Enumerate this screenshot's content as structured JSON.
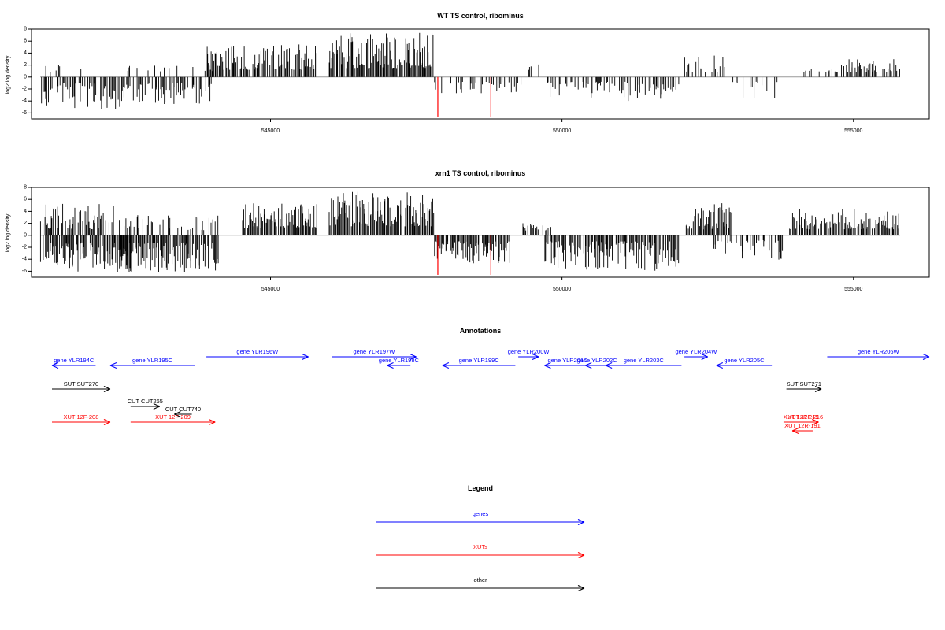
{
  "chart_data": [
    {
      "type": "bar",
      "title": "WT TS control, ribominus",
      "ylabel": "log2 log density",
      "xlabel": "",
      "xlim": [
        540900,
        556300
      ],
      "ylim": [
        -7,
        8
      ],
      "xticks": [
        545000,
        550000,
        555000
      ],
      "xtick_labels": [
        "545000",
        "550000",
        "555000"
      ],
      "yticks": [
        -6,
        -4,
        -2,
        0,
        2,
        4,
        6,
        8
      ],
      "ytick_labels": [
        "-6",
        "-4",
        "-2",
        "0",
        "2",
        "4",
        "6",
        "8"
      ],
      "grid": false,
      "bar_color": "#000000",
      "highlight_color": "#ff0000",
      "segments": [
        {
          "start": 541050,
          "end": 542500,
          "sign": -1,
          "density": 0.55,
          "min": 1.0,
          "max": 5.5
        },
        {
          "start": 541050,
          "end": 541800,
          "sign": 1,
          "density": 0.12,
          "min": 0.8,
          "max": 2.0
        },
        {
          "start": 542400,
          "end": 544000,
          "sign": -1,
          "density": 0.5,
          "min": 1.0,
          "max": 4.6
        },
        {
          "start": 542500,
          "end": 544000,
          "sign": 1,
          "density": 0.12,
          "min": 0.8,
          "max": 2.0
        },
        {
          "start": 543900,
          "end": 545800,
          "sign": 1,
          "density": 0.75,
          "min": 1.2,
          "max": 5.5
        },
        {
          "start": 546000,
          "end": 547800,
          "sign": 1,
          "density": 0.95,
          "min": 1.5,
          "max": 7.5
        },
        {
          "start": 547800,
          "end": 549300,
          "sign": -1,
          "density": 0.35,
          "min": 0.8,
          "max": 3.0
        },
        {
          "start": 549300,
          "end": 549600,
          "sign": 1,
          "density": 0.3,
          "min": 0.8,
          "max": 3.0
        },
        {
          "start": 549700,
          "end": 550700,
          "sign": -1,
          "density": 0.4,
          "min": 0.8,
          "max": 3.5
        },
        {
          "start": 550700,
          "end": 552000,
          "sign": -1,
          "density": 0.5,
          "min": 0.8,
          "max": 4.0
        },
        {
          "start": 552100,
          "end": 552800,
          "sign": 1,
          "density": 0.25,
          "min": 0.8,
          "max": 3.8
        },
        {
          "start": 552900,
          "end": 553700,
          "sign": -1,
          "density": 0.3,
          "min": 0.8,
          "max": 3.5
        },
        {
          "start": 554000,
          "end": 554600,
          "sign": 1,
          "density": 0.2,
          "min": 0.8,
          "max": 1.8
        },
        {
          "start": 554600,
          "end": 555800,
          "sign": 1,
          "density": 0.55,
          "min": 0.8,
          "max": 3.0
        }
      ],
      "highlights": [
        {
          "x": 547870,
          "y": -6.6
        },
        {
          "x": 548780,
          "y": -6.6
        }
      ]
    },
    {
      "type": "bar",
      "title": "xrn1 TS control, ribominus",
      "ylabel": "log2 log density",
      "xlabel": "",
      "xlim": [
        540900,
        556300
      ],
      "ylim": [
        -7,
        8
      ],
      "xticks": [
        545000,
        550000,
        555000
      ],
      "xtick_labels": [
        "545000",
        "550000",
        "555000"
      ],
      "yticks": [
        -6,
        -4,
        -2,
        0,
        2,
        4,
        6,
        8
      ],
      "ytick_labels": [
        "-6",
        "-4",
        "-2",
        "0",
        "2",
        "4",
        "6",
        "8"
      ],
      "grid": false,
      "bar_color": "#000000",
      "highlight_color": "#ff0000",
      "segments": [
        {
          "start": 541050,
          "end": 542600,
          "sign": -1,
          "density": 0.9,
          "min": 1.2,
          "max": 6.5
        },
        {
          "start": 541050,
          "end": 542300,
          "sign": 1,
          "density": 0.7,
          "min": 1.0,
          "max": 5.3
        },
        {
          "start": 542400,
          "end": 544100,
          "sign": -1,
          "density": 0.85,
          "min": 1.2,
          "max": 6.2
        },
        {
          "start": 542400,
          "end": 544100,
          "sign": 1,
          "density": 0.35,
          "min": 0.8,
          "max": 3.5
        },
        {
          "start": 544500,
          "end": 545800,
          "sign": 1,
          "density": 0.9,
          "min": 1.2,
          "max": 5.5
        },
        {
          "start": 546000,
          "end": 547800,
          "sign": 1,
          "density": 0.95,
          "min": 1.5,
          "max": 7.5
        },
        {
          "start": 547800,
          "end": 549100,
          "sign": -1,
          "density": 0.8,
          "min": 1.0,
          "max": 4.8
        },
        {
          "start": 549300,
          "end": 549800,
          "sign": 1,
          "density": 0.5,
          "min": 0.8,
          "max": 2.5
        },
        {
          "start": 549700,
          "end": 552000,
          "sign": -1,
          "density": 0.85,
          "min": 1.0,
          "max": 6.0
        },
        {
          "start": 552100,
          "end": 552900,
          "sign": 1,
          "density": 0.8,
          "min": 1.0,
          "max": 5.5
        },
        {
          "start": 552600,
          "end": 553800,
          "sign": -1,
          "density": 0.55,
          "min": 0.8,
          "max": 4.2
        },
        {
          "start": 553900,
          "end": 555800,
          "sign": 1,
          "density": 0.8,
          "min": 1.0,
          "max": 4.5
        }
      ],
      "highlights": [
        {
          "x": 547870,
          "y": -6.6
        },
        {
          "x": 548780,
          "y": -6.6
        }
      ]
    }
  ],
  "annotations": {
    "title": "Annotations",
    "xlim": [
      540900,
      556300
    ],
    "features": [
      {
        "label": "gene YLR194C",
        "start": 541250,
        "end": 542000,
        "dir": -1,
        "type": "gene",
        "row": 0
      },
      {
        "label": "gene YLR195C",
        "start": 542250,
        "end": 543700,
        "dir": -1,
        "type": "gene",
        "row": 0
      },
      {
        "label": "gene YLR196W",
        "start": 543900,
        "end": 545650,
        "dir": 1,
        "type": "gene",
        "row": 0,
        "raised": true
      },
      {
        "label": "gene YLR197W",
        "start": 546050,
        "end": 547500,
        "dir": 1,
        "type": "gene",
        "row": 0,
        "raised": true
      },
      {
        "label": "gene YLR198C",
        "start": 547000,
        "end": 547400,
        "dir": -1,
        "type": "gene",
        "row": 0
      },
      {
        "label": "gene YLR199C",
        "start": 547950,
        "end": 549200,
        "dir": -1,
        "type": "gene",
        "row": 0
      },
      {
        "label": "gene YLR200W",
        "start": 549250,
        "end": 549600,
        "dir": 1,
        "type": "gene",
        "row": 0,
        "raised": true
      },
      {
        "label": "gene YLR201C",
        "start": 549700,
        "end": 550500,
        "dir": -1,
        "type": "gene",
        "row": 0
      },
      {
        "label": "gene YLR202C",
        "start": 550400,
        "end": 550800,
        "dir": -1,
        "type": "gene",
        "row": 0
      },
      {
        "label": "gene YLR203C",
        "start": 550750,
        "end": 552050,
        "dir": -1,
        "type": "gene",
        "row": 0
      },
      {
        "label": "gene YLR204W",
        "start": 552100,
        "end": 552500,
        "dir": 1,
        "type": "gene",
        "row": 0,
        "raised": true
      },
      {
        "label": "gene YLR205C",
        "start": 552650,
        "end": 553600,
        "dir": -1,
        "type": "gene",
        "row": 0
      },
      {
        "label": "gene YLR206W",
        "start": 554550,
        "end": 556300,
        "dir": 1,
        "type": "gene",
        "row": 0,
        "raised": true
      },
      {
        "label": "SUT SUT270",
        "start": 541200,
        "end": 542250,
        "dir": 1,
        "type": "other",
        "row": 1
      },
      {
        "label": "SUT SUT271",
        "start": 553850,
        "end": 554450,
        "dir": 1,
        "type": "other",
        "row": 1
      },
      {
        "label": "CUT CUT265",
        "start": 542600,
        "end": 543100,
        "dir": 1,
        "type": "other",
        "row": 2
      },
      {
        "label": "CUT CUT740",
        "start": 543350,
        "end": 543650,
        "dir": -1,
        "type": "other",
        "row": 3
      },
      {
        "label": "XUT 12F-208",
        "start": 541100,
        "end": 542250,
        "dir": 1,
        "type": "xut",
        "row": 4
      },
      {
        "label": "XUT 12F-209",
        "start": 542600,
        "end": 544050,
        "dir": 1,
        "type": "xut",
        "row": 4
      },
      {
        "label": "XUT 12F-215",
        "start": 553800,
        "end": 554400,
        "dir": 1,
        "type": "xut",
        "row": 4
      },
      {
        "label": "XUT 12F-216",
        "start": 553950,
        "end": 554400,
        "dir": 1,
        "type": "xut",
        "row": 4
      },
      {
        "label": "XUT 12R-191",
        "start": 553950,
        "end": 554300,
        "dir": -1,
        "type": "xut",
        "row": 5
      }
    ]
  },
  "legend": {
    "title": "Legend",
    "items": [
      {
        "label": "genes",
        "color": "#0000ff"
      },
      {
        "label": "XUTs",
        "color": "#ff0000"
      },
      {
        "label": "other",
        "color": "#000000"
      }
    ]
  },
  "colors": {
    "gene": "#0000ff",
    "xut": "#ff0000",
    "other": "#000000",
    "baseline": "#999999"
  }
}
